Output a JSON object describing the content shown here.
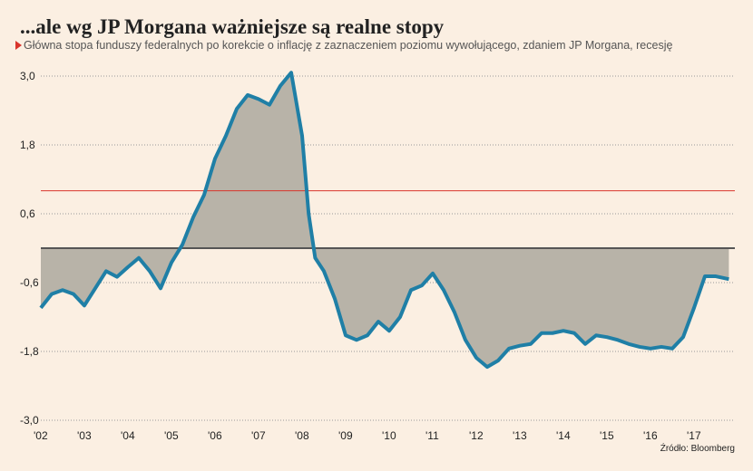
{
  "chart_data": {
    "type": "line",
    "title": "...ale wg JP Morgana ważniejsze są realne stopy",
    "subtitle": "Główna stopa funduszy federalnych po korekcie o inflację z zaznaczeniem poziomu wywołującego, zdaniem JP Morgana, recesję",
    "source": "Źródło: Bloomberg",
    "x": [
      2002.0,
      2002.25,
      2002.5,
      2002.75,
      2003.0,
      2003.25,
      2003.5,
      2003.75,
      2004.0,
      2004.25,
      2004.5,
      2004.75,
      2005.0,
      2005.25,
      2005.5,
      2005.75,
      2006.0,
      2006.25,
      2006.5,
      2006.75,
      2007.0,
      2007.25,
      2007.5,
      2007.75,
      2008.0,
      2008.15,
      2008.3,
      2008.5,
      2008.75,
      2009.0,
      2009.25,
      2009.5,
      2009.75,
      2010.0,
      2010.25,
      2010.5,
      2010.75,
      2011.0,
      2011.25,
      2011.5,
      2011.75,
      2012.0,
      2012.25,
      2012.5,
      2012.75,
      2013.0,
      2013.25,
      2013.5,
      2013.75,
      2014.0,
      2014.25,
      2014.5,
      2014.75,
      2015.0,
      2015.25,
      2015.5,
      2015.75,
      2016.0,
      2016.25,
      2016.5,
      2016.75,
      2017.0,
      2017.25,
      2017.5,
      2017.8
    ],
    "series": [
      {
        "color": "#1f7fa6",
        "area_color": "#b8b3a8",
        "values": [
          -1.04,
          -0.8,
          -0.73,
          -0.8,
          -1.0,
          -0.7,
          -0.4,
          -0.5,
          -0.33,
          -0.17,
          -0.4,
          -0.7,
          -0.25,
          0.06,
          0.54,
          0.93,
          1.56,
          1.96,
          2.43,
          2.67,
          2.6,
          2.5,
          2.83,
          3.06,
          1.96,
          0.6,
          -0.17,
          -0.4,
          -0.88,
          -1.52,
          -1.6,
          -1.52,
          -1.28,
          -1.44,
          -1.2,
          -0.73,
          -0.65,
          -0.44,
          -0.73,
          -1.12,
          -1.6,
          -1.91,
          -2.07,
          -1.96,
          -1.75,
          -1.7,
          -1.67,
          -1.48,
          -1.48,
          -1.44,
          -1.48,
          -1.67,
          -1.52,
          -1.55,
          -1.6,
          -1.67,
          -1.72,
          -1.75,
          -1.72,
          -1.75,
          -1.55,
          -1.04,
          -0.49,
          -0.49,
          -0.54
        ]
      }
    ],
    "threshold": 1.0,
    "threshold_color": "#d9342b",
    "xlim": [
      2002,
      2018
    ],
    "xticks": [
      {
        "value": 2002,
        "label": "'02"
      },
      {
        "value": 2003,
        "label": "'03"
      },
      {
        "value": 2004,
        "label": "'04"
      },
      {
        "value": 2005,
        "label": "'05"
      },
      {
        "value": 2006,
        "label": "'06"
      },
      {
        "value": 2007,
        "label": "'07"
      },
      {
        "value": 2008,
        "label": "'08"
      },
      {
        "value": 2009,
        "label": "'09"
      },
      {
        "value": 2010,
        "label": "'10"
      },
      {
        "value": 2011,
        "label": "'11"
      },
      {
        "value": 2012,
        "label": "'12"
      },
      {
        "value": 2013,
        "label": "'13"
      },
      {
        "value": 2014,
        "label": "'14"
      },
      {
        "value": 2015,
        "label": "'15"
      },
      {
        "value": 2016,
        "label": "'16"
      },
      {
        "value": 2017,
        "label": "'17"
      }
    ],
    "ylim": [
      -3.0,
      3.0
    ],
    "yticks": [
      {
        "value": 3.0,
        "label": "3,0"
      },
      {
        "value": 1.8,
        "label": "1,8"
      },
      {
        "value": 0.6,
        "label": "0,6"
      },
      {
        "value": -0.6,
        "label": "-0,6"
      },
      {
        "value": -1.8,
        "label": "-1,8"
      },
      {
        "value": -3.0,
        "label": "-3,0"
      }
    ],
    "grid": true
  }
}
